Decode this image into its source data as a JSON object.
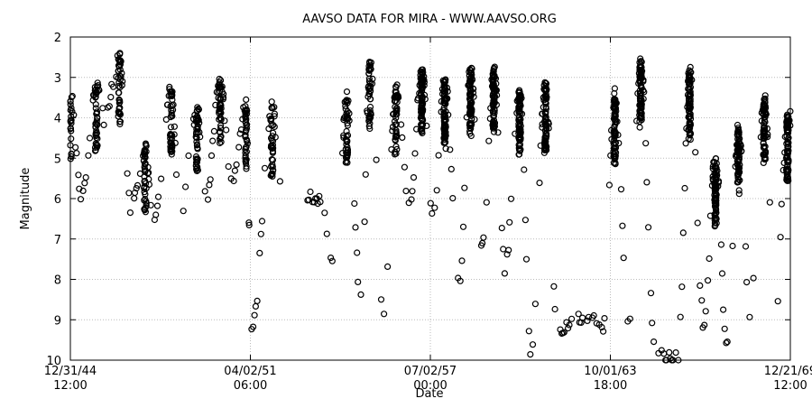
{
  "chart_data": {
    "type": "scatter",
    "title": "AAVSO DATA FOR MIRA - WWW.AAVSO.ORG",
    "xlabel": "Date",
    "ylabel": "Magnitude",
    "y_inverted": true,
    "ylim": [
      2,
      10
    ],
    "y_ticks": [
      2,
      3,
      4,
      5,
      6,
      7,
      8,
      9,
      10
    ],
    "x_ticks": [
      {
        "date": "12/31/44",
        "time": "12:00"
      },
      {
        "date": "04/02/51",
        "time": "06:00"
      },
      {
        "date": "07/02/57",
        "time": "00:00"
      },
      {
        "date": "10/01/63",
        "time": "18:00"
      },
      {
        "date": "12/21/69",
        "time": "12:00"
      }
    ],
    "grid": true,
    "legend": "none",
    "marker": "open-circle",
    "xlim_years": [
      1945.0,
      1970.0
    ],
    "maxima": [
      {
        "year": 1945.0,
        "mag": 3.5
      },
      {
        "year": 1945.9,
        "mag": 3.3
      },
      {
        "year": 1946.7,
        "mag": 2.6
      },
      {
        "year": 1947.6,
        "mag": 4.8
      },
      {
        "year": 1948.5,
        "mag": 3.3
      },
      {
        "year": 1949.4,
        "mag": 3.8
      },
      {
        "year": 1950.2,
        "mag": 3.2
      },
      {
        "year": 1951.1,
        "mag": 3.8
      },
      {
        "year": 1952.0,
        "mag": 3.8
      },
      {
        "year": 1954.6,
        "mag": 3.5
      },
      {
        "year": 1955.4,
        "mag": 2.7
      },
      {
        "year": 1956.3,
        "mag": 3.3
      },
      {
        "year": 1957.2,
        "mag": 2.8
      },
      {
        "year": 1958.0,
        "mag": 3.1
      },
      {
        "year": 1958.9,
        "mag": 2.8
      },
      {
        "year": 1959.7,
        "mag": 2.8
      },
      {
        "year": 1960.6,
        "mag": 3.3
      },
      {
        "year": 1961.5,
        "mag": 3.2
      },
      {
        "year": 1963.9,
        "mag": 3.5
      },
      {
        "year": 1964.8,
        "mag": 2.6
      },
      {
        "year": 1966.5,
        "mag": 2.9
      },
      {
        "year": 1967.4,
        "mag": 5.0
      },
      {
        "year": 1968.2,
        "mag": 4.2
      },
      {
        "year": 1969.1,
        "mag": 3.5
      },
      {
        "year": 1969.9,
        "mag": 4.0
      }
    ],
    "minima": [
      {
        "year": 1945.4,
        "mag": 6.0
      },
      {
        "year": 1946.2,
        "mag": 4.0
      },
      {
        "year": 1947.1,
        "mag": 6.3
      },
      {
        "year": 1947.9,
        "mag": 6.6
      },
      {
        "year": 1948.8,
        "mag": 6.4
      },
      {
        "year": 1949.7,
        "mag": 6.0
      },
      {
        "year": 1950.6,
        "mag": 5.7
      },
      {
        "year": 1951.3,
        "mag": 9.2
      },
      {
        "year": 1952.4,
        "mag": 6.0
      },
      {
        "year": 1953.6,
        "mag": 6.0
      },
      {
        "year": 1954.2,
        "mag": 7.8
      },
      {
        "year": 1955.1,
        "mag": 8.5
      },
      {
        "year": 1955.9,
        "mag": 8.9
      },
      {
        "year": 1956.8,
        "mag": 6.2
      },
      {
        "year": 1957.6,
        "mag": 6.5
      },
      {
        "year": 1958.5,
        "mag": 8.1
      },
      {
        "year": 1959.3,
        "mag": 7.3
      },
      {
        "year": 1960.1,
        "mag": 7.7
      },
      {
        "year": 1961.0,
        "mag": 9.9
      },
      {
        "year": 1961.9,
        "mag": 9.2
      },
      {
        "year": 1962.7,
        "mag": 9.0
      },
      {
        "year": 1963.5,
        "mag": 9.1
      },
      {
        "year": 1964.4,
        "mag": 9.1
      },
      {
        "year": 1965.3,
        "mag": 9.8
      },
      {
        "year": 1966.1,
        "mag": 10.0
      },
      {
        "year": 1967.0,
        "mag": 9.1
      },
      {
        "year": 1967.8,
        "mag": 9.7
      },
      {
        "year": 1968.6,
        "mag": 8.8
      },
      {
        "year": 1969.5,
        "mag": 8.7
      }
    ],
    "gaps_years": [
      [
        1952.3,
        1953.2
      ]
    ]
  }
}
